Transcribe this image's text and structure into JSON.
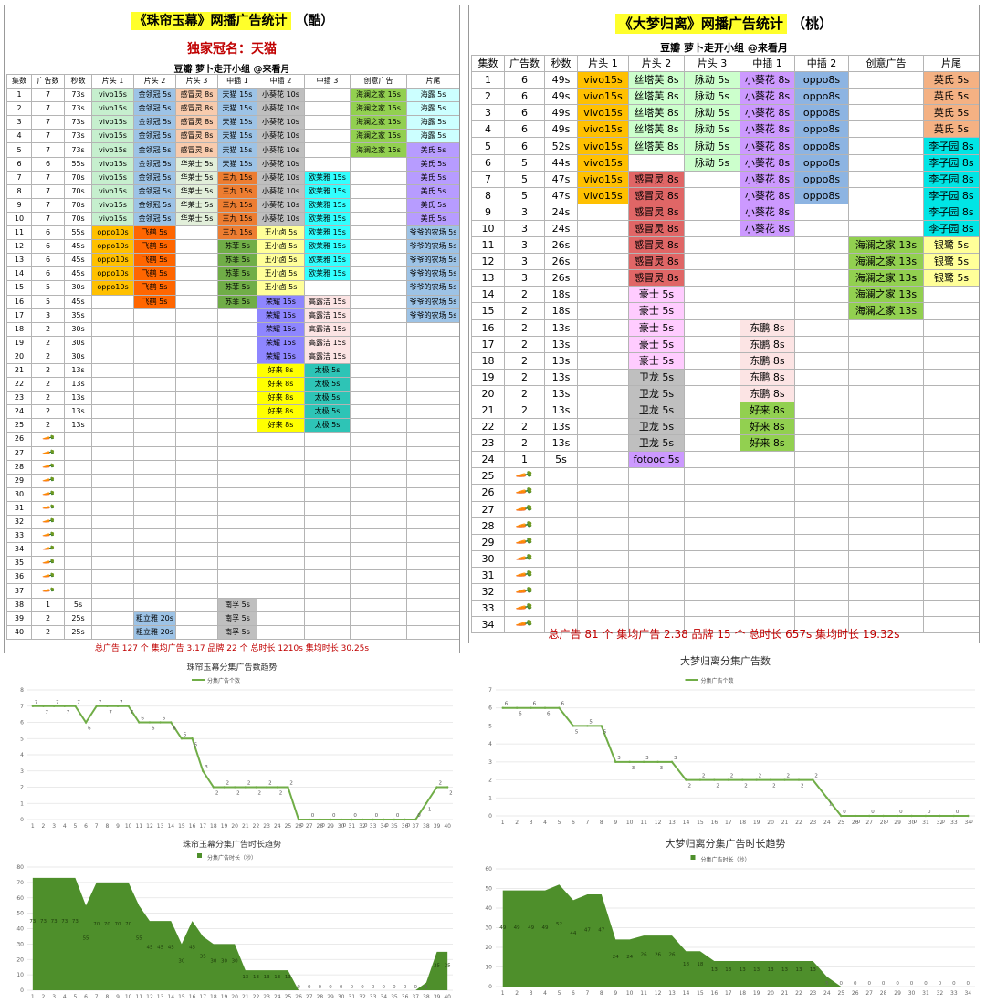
{
  "left_table": {
    "title_main": "《珠帘玉幕》网播广告统计",
    "title_suffix": "（酷）",
    "crown": "独家冠名：天猫",
    "subtitle": "豆瓣 萝卜走开小组 @来看月",
    "headers": [
      "集数",
      "广告数",
      "秒数",
      "片头 1",
      "片头 2",
      "片头 3",
      "中插 1",
      "中插 2",
      "中插 3",
      "创意广告",
      "片尾"
    ],
    "rows": [
      [
        "1",
        "7",
        "73s",
        "vivo15s",
        "金领冠 5s",
        "感冒灵 8s",
        "天猫 15s",
        "小葵花 10s",
        "",
        "海澜之家 15s",
        "海露 5s"
      ],
      [
        "2",
        "7",
        "73s",
        "vivo15s",
        "金领冠 5s",
        "感冒灵 8s",
        "天猫 15s",
        "小葵花 10s",
        "",
        "海澜之家 15s",
        "海露 5s"
      ],
      [
        "3",
        "7",
        "73s",
        "vivo15s",
        "金领冠 5s",
        "感冒灵 8s",
        "天猫 15s",
        "小葵花 10s",
        "",
        "海澜之家 15s",
        "海露 5s"
      ],
      [
        "4",
        "7",
        "73s",
        "vivo15s",
        "金领冠 5s",
        "感冒灵 8s",
        "天猫 15s",
        "小葵花 10s",
        "",
        "海澜之家 15s",
        "海露 5s"
      ],
      [
        "5",
        "7",
        "73s",
        "vivo15s",
        "金领冠 5s",
        "感冒灵 8s",
        "天猫 15s",
        "小葵花 10s",
        "",
        "海澜之家 15s",
        "美氏 5s"
      ],
      [
        "6",
        "6",
        "55s",
        "vivo15s",
        "金领冠 5s",
        "华莱士 5s",
        "天猫 15s",
        "小葵花 10s",
        "",
        "",
        "美氏 5s"
      ],
      [
        "7",
        "7",
        "70s",
        "vivo15s",
        "金领冠 5s",
        "华莱士 5s",
        "三九 15s",
        "小葵花 10s",
        "欧莱雅 15s",
        "",
        "美氏 5s"
      ],
      [
        "8",
        "7",
        "70s",
        "vivo15s",
        "金领冠 5s",
        "华莱士 5s",
        "三九 15s",
        "小葵花 10s",
        "欧莱雅 15s",
        "",
        "美氏 5s"
      ],
      [
        "9",
        "7",
        "70s",
        "vivo15s",
        "金领冠 5s",
        "华莱士 5s",
        "三九 15s",
        "小葵花 10s",
        "欧莱雅 15s",
        "",
        "美氏 5s"
      ],
      [
        "10",
        "7",
        "70s",
        "vivo15s",
        "金领冠 5s",
        "华莱士 5s",
        "三九 15s",
        "小葵花 10s",
        "欧莱雅 15s",
        "",
        "美氏 5s"
      ],
      [
        "11",
        "6",
        "55s",
        "oppo10s",
        "飞鹤 5s",
        "",
        "三九 15s",
        "王小卤 5s",
        "欧莱雅 15s",
        "",
        "爷爷的农场 5s"
      ],
      [
        "12",
        "6",
        "45s",
        "oppo10s",
        "飞鹤 5s",
        "",
        "苏菲 5s",
        "王小卤 5s",
        "欧莱雅 15s",
        "",
        "爷爷的农场 5s"
      ],
      [
        "13",
        "6",
        "45s",
        "oppo10s",
        "飞鹤 5s",
        "",
        "苏菲 5s",
        "王小卤 5s",
        "欧莱雅 15s",
        "",
        "爷爷的农场 5s"
      ],
      [
        "14",
        "6",
        "45s",
        "oppo10s",
        "飞鹤 5s",
        "",
        "苏菲 5s",
        "王小卤 5s",
        "欧莱雅 15s",
        "",
        "爷爷的农场 5s"
      ],
      [
        "15",
        "5",
        "30s",
        "oppo10s",
        "飞鹤 5s",
        "",
        "苏菲 5s",
        "王小卤 5s",
        "",
        "",
        "爷爷的农场 5s"
      ],
      [
        "16",
        "5",
        "45s",
        "",
        "飞鹤 5s",
        "",
        "苏菲 5s",
        "荣耀 15s",
        "高露洁 15s",
        "",
        "爷爷的农场 5s"
      ],
      [
        "17",
        "3",
        "35s",
        "",
        "",
        "",
        "",
        "荣耀 15s",
        "高露洁 15s",
        "",
        "爷爷的农场 5s"
      ],
      [
        "18",
        "2",
        "30s",
        "",
        "",
        "",
        "",
        "荣耀 15s",
        "高露洁 15s",
        "",
        ""
      ],
      [
        "19",
        "2",
        "30s",
        "",
        "",
        "",
        "",
        "荣耀 15s",
        "高露洁 15s",
        "",
        ""
      ],
      [
        "20",
        "2",
        "30s",
        "",
        "",
        "",
        "",
        "荣耀 15s",
        "高露洁 15s",
        "",
        ""
      ],
      [
        "21",
        "2",
        "13s",
        "",
        "",
        "",
        "",
        "好来 8s",
        "太极 5s",
        "",
        ""
      ],
      [
        "22",
        "2",
        "13s",
        "",
        "",
        "",
        "",
        "好来 8s",
        "太极 5s",
        "",
        ""
      ],
      [
        "23",
        "2",
        "13s",
        "",
        "",
        "",
        "",
        "好来 8s",
        "太极 5s",
        "",
        ""
      ],
      [
        "24",
        "2",
        "13s",
        "",
        "",
        "",
        "",
        "好来 8s",
        "太极 5s",
        "",
        ""
      ],
      [
        "25",
        "2",
        "13s",
        "",
        "",
        "",
        "",
        "好来 8s",
        "太极 5s",
        "",
        ""
      ],
      [
        "26",
        "carrot",
        "",
        "",
        "",
        "",
        "",
        "",
        "",
        "",
        ""
      ],
      [
        "27",
        "carrot",
        "",
        "",
        "",
        "",
        "",
        "",
        "",
        "",
        ""
      ],
      [
        "28",
        "carrot",
        "",
        "",
        "",
        "",
        "",
        "",
        "",
        "",
        ""
      ],
      [
        "29",
        "carrot",
        "",
        "",
        "",
        "",
        "",
        "",
        "",
        "",
        ""
      ],
      [
        "30",
        "carrot",
        "",
        "",
        "",
        "",
        "",
        "",
        "",
        "",
        ""
      ],
      [
        "31",
        "carrot",
        "",
        "",
        "",
        "",
        "",
        "",
        "",
        "",
        ""
      ],
      [
        "32",
        "carrot",
        "",
        "",
        "",
        "",
        "",
        "",
        "",
        "",
        ""
      ],
      [
        "33",
        "carrot",
        "",
        "",
        "",
        "",
        "",
        "",
        "",
        "",
        ""
      ],
      [
        "34",
        "carrot",
        "",
        "",
        "",
        "",
        "",
        "",
        "",
        "",
        ""
      ],
      [
        "35",
        "carrot",
        "",
        "",
        "",
        "",
        "",
        "",
        "",
        "",
        ""
      ],
      [
        "36",
        "carrot",
        "",
        "",
        "",
        "",
        "",
        "",
        "",
        "",
        ""
      ],
      [
        "37",
        "carrot",
        "",
        "",
        "",
        "",
        "",
        "",
        "",
        "",
        ""
      ],
      [
        "38",
        "1",
        "5s",
        "",
        "",
        "",
        "南孚 5s",
        "",
        "",
        "",
        ""
      ],
      [
        "39",
        "2",
        "25s",
        "",
        "粗立雅 20s",
        "",
        "南孚 5s",
        "",
        "",
        "",
        ""
      ],
      [
        "40",
        "2",
        "25s",
        "",
        "粗立雅 20s",
        "",
        "南孚 5s",
        "",
        "",
        "",
        ""
      ]
    ],
    "footer": "总广告 127 个   集均广告 3.17   品牌 22 个   总时长 1210s   集均时长 30.25s"
  },
  "right_table": {
    "title_main": "《大梦归离》网播广告统计",
    "title_suffix": "（桃）",
    "subtitle": "豆瓣 萝卜走开小组 @来看月",
    "headers": [
      "集数",
      "广告数",
      "秒数",
      "片头 1",
      "片头 2",
      "片头 3",
      "中插 1",
      "中插 2",
      "创意广告",
      "片尾"
    ],
    "rows": [
      [
        "1",
        "6",
        "49s",
        "vivo15s",
        "丝塔芙 8s",
        "脉动 5s",
        "小葵花 8s",
        "oppo8s",
        "",
        "英氏 5s"
      ],
      [
        "2",
        "6",
        "49s",
        "vivo15s",
        "丝塔芙 8s",
        "脉动 5s",
        "小葵花 8s",
        "oppo8s",
        "",
        "英氏 5s"
      ],
      [
        "3",
        "6",
        "49s",
        "vivo15s",
        "丝塔芙 8s",
        "脉动 5s",
        "小葵花 8s",
        "oppo8s",
        "",
        "英氏 5s"
      ],
      [
        "4",
        "6",
        "49s",
        "vivo15s",
        "丝塔芙 8s",
        "脉动 5s",
        "小葵花 8s",
        "oppo8s",
        "",
        "英氏 5s"
      ],
      [
        "5",
        "6",
        "52s",
        "vivo15s",
        "丝塔芙 8s",
        "脉动 5s",
        "小葵花 8s",
        "oppo8s",
        "",
        "李子园 8s"
      ],
      [
        "6",
        "5",
        "44s",
        "vivo15s",
        "",
        "脉动 5s",
        "小葵花 8s",
        "oppo8s",
        "",
        "李子园 8s"
      ],
      [
        "7",
        "5",
        "47s",
        "vivo15s",
        "感冒灵 8s",
        "",
        "小葵花 8s",
        "oppo8s",
        "",
        "李子园 8s"
      ],
      [
        "8",
        "5",
        "47s",
        "vivo15s",
        "感冒灵 8s",
        "",
        "小葵花 8s",
        "oppo8s",
        "",
        "李子园 8s"
      ],
      [
        "9",
        "3",
        "24s",
        "",
        "感冒灵 8s",
        "",
        "小葵花 8s",
        "",
        "",
        "李子园 8s"
      ],
      [
        "10",
        "3",
        "24s",
        "",
        "感冒灵 8s",
        "",
        "小葵花 8s",
        "",
        "",
        "李子园 8s"
      ],
      [
        "11",
        "3",
        "26s",
        "",
        "感冒灵 8s",
        "",
        "",
        "",
        "海澜之家 13s",
        "银鹭 5s"
      ],
      [
        "12",
        "3",
        "26s",
        "",
        "感冒灵 8s",
        "",
        "",
        "",
        "海澜之家 13s",
        "银鹭 5s"
      ],
      [
        "13",
        "3",
        "26s",
        "",
        "感冒灵 8s",
        "",
        "",
        "",
        "海澜之家 13s",
        "银鹭 5s"
      ],
      [
        "14",
        "2",
        "18s",
        "",
        "豪士 5s",
        "",
        "",
        "",
        "海澜之家 13s",
        ""
      ],
      [
        "15",
        "2",
        "18s",
        "",
        "豪士 5s",
        "",
        "",
        "",
        "海澜之家 13s",
        ""
      ],
      [
        "16",
        "2",
        "13s",
        "",
        "豪士 5s",
        "",
        "东鹏 8s",
        "",
        "",
        ""
      ],
      [
        "17",
        "2",
        "13s",
        "",
        "豪士 5s",
        "",
        "东鹏 8s",
        "",
        "",
        ""
      ],
      [
        "18",
        "2",
        "13s",
        "",
        "豪士 5s",
        "",
        "东鹏 8s",
        "",
        "",
        ""
      ],
      [
        "19",
        "2",
        "13s",
        "",
        "卫龙 5s",
        "",
        "东鹏 8s",
        "",
        "",
        ""
      ],
      [
        "20",
        "2",
        "13s",
        "",
        "卫龙 5s",
        "",
        "东鹏 8s",
        "",
        "",
        ""
      ],
      [
        "21",
        "2",
        "13s",
        "",
        "卫龙 5s",
        "",
        "好来 8s",
        "",
        "",
        ""
      ],
      [
        "22",
        "2",
        "13s",
        "",
        "卫龙 5s",
        "",
        "好来 8s",
        "",
        "",
        ""
      ],
      [
        "23",
        "2",
        "13s",
        "",
        "卫龙 5s",
        "",
        "好来 8s",
        "",
        "",
        ""
      ],
      [
        "24",
        "1",
        "5s",
        "",
        "fotooc 5s",
        "",
        "",
        "",
        "",
        ""
      ],
      [
        "25",
        "carrot",
        "",
        "",
        "",
        "",
        "",
        "",
        "",
        ""
      ],
      [
        "26",
        "carrot",
        "",
        "",
        "",
        "",
        "",
        "",
        "",
        ""
      ],
      [
        "27",
        "carrot",
        "",
        "",
        "",
        "",
        "",
        "",
        "",
        ""
      ],
      [
        "28",
        "carrot",
        "",
        "",
        "",
        "",
        "",
        "",
        "",
        ""
      ],
      [
        "29",
        "carrot",
        "",
        "",
        "",
        "",
        "",
        "",
        "",
        ""
      ],
      [
        "30",
        "carrot",
        "",
        "",
        "",
        "",
        "",
        "",
        "",
        ""
      ],
      [
        "31",
        "carrot",
        "",
        "",
        "",
        "",
        "",
        "",
        "",
        ""
      ],
      [
        "32",
        "carrot",
        "",
        "",
        "",
        "",
        "",
        "",
        "",
        ""
      ],
      [
        "33",
        "carrot",
        "",
        "",
        "",
        "",
        "",
        "",
        "",
        ""
      ],
      [
        "34",
        "carrot",
        "",
        "",
        "",
        "",
        "",
        "",
        "",
        ""
      ]
    ],
    "footer": "总广告 81 个   集均广告 2.38   品牌 15 个   总时长 657s   集均时长 19.32s"
  },
  "brand_colors": {
    "vivo15s": "#c6efce",
    "oppo10s": "#ffc000",
    "金领冠 5s": "#9dc3e6",
    "飞鹤 5s": "#ff6600",
    "粗立雅 20s": "#9dc3e6",
    "感冒灵 8s": "#f8cbad",
    "华莱士 5s": "#e2efda",
    "天猫 15s": "#9dc3e6",
    "三九 15s": "#ed7d31",
    "苏菲 5s": "#70ad47",
    "南孚 5s": "#bfbfbf",
    "小葵花 10s": "#bfbfbf",
    "王小卤 5s": "#ffff99",
    "荣耀 15s": "#8e86ff",
    "好来 8s": "#ffff00",
    "欧莱雅 15s": "#33ffff",
    "高露洁 15s": "#fce4e4",
    "太极 5s": "#2ec4b6",
    "海澜之家 15s": "#92d050",
    "海露 5s": "#ccffff",
    "美氏 5s": "#b79cff",
    "爷爷的农场 5s": "#9dc3e6",
    "vivo15s@R": "#ffc000",
    "丝塔芙 8s": "#ccffcc",
    "感冒灵 8s@R": "#e06666",
    "豪士 5s": "#ffccff",
    "卫龙 5s": "#bfbfbf",
    "fotooc 5s": "#cc99ff",
    "脉动 5s": "#ccffcc",
    "小葵花 8s": "#cc99ff",
    "东鹏 8s": "#fce4e4",
    "好来 8s@R": "#92d050",
    "oppo8s": "#8db4e2",
    "海澜之家 13s": "#92d050",
    "英氏 5s": "#f4b183",
    "李子园 8s": "#00e5e5",
    "银鹭 5s": "#ffff99"
  },
  "chart_data": [
    {
      "type": "line",
      "title": "珠帘玉幕分集广告数趋势",
      "series": [
        {
          "name": "分集广告个数",
          "color": "#70ad47",
          "values": [
            7,
            7,
            7,
            7,
            7,
            6,
            7,
            7,
            7,
            7,
            6,
            6,
            6,
            6,
            5,
            5,
            3,
            2,
            2,
            2,
            2,
            2,
            2,
            2,
            2,
            0,
            0,
            0,
            0,
            0,
            0,
            0,
            0,
            0,
            0,
            0,
            0,
            1,
            2,
            2
          ]
        }
      ],
      "x": [
        1,
        2,
        3,
        4,
        5,
        6,
        7,
        8,
        9,
        10,
        11,
        12,
        13,
        14,
        15,
        16,
        17,
        18,
        19,
        20,
        21,
        22,
        23,
        24,
        25,
        26,
        27,
        28,
        29,
        30,
        31,
        32,
        33,
        34,
        35,
        36,
        37,
        38,
        39,
        40
      ],
      "ylim": [
        0,
        8
      ],
      "yticks": [
        0,
        1,
        2,
        3,
        4,
        5,
        6,
        7,
        8
      ],
      "grid": true,
      "legend": "top"
    },
    {
      "type": "line",
      "title": "大梦归离分集广告数",
      "series": [
        {
          "name": "分集广告个数",
          "color": "#70ad47",
          "values": [
            6,
            6,
            6,
            6,
            6,
            5,
            5,
            5,
            3,
            3,
            3,
            3,
            3,
            2,
            2,
            2,
            2,
            2,
            2,
            2,
            2,
            2,
            2,
            1,
            0,
            0,
            0,
            0,
            0,
            0,
            0,
            0,
            0,
            0
          ]
        }
      ],
      "x": [
        1,
        2,
        3,
        4,
        5,
        6,
        7,
        8,
        9,
        10,
        11,
        12,
        13,
        14,
        15,
        16,
        17,
        18,
        19,
        20,
        21,
        22,
        23,
        24,
        25,
        26,
        27,
        28,
        29,
        30,
        31,
        32,
        33,
        34
      ],
      "ylim": [
        0,
        7
      ],
      "yticks": [
        0,
        1,
        2,
        3,
        4,
        5,
        6,
        7
      ],
      "grid": true,
      "legend": "top"
    },
    {
      "type": "area",
      "title": "珠帘玉幕分集广告时长趋势",
      "series": [
        {
          "name": "分集广告时长（秒）",
          "color": "#4e8f2b",
          "values": [
            73,
            73,
            73,
            73,
            73,
            55,
            70,
            70,
            70,
            70,
            55,
            45,
            45,
            45,
            30,
            45,
            35,
            30,
            30,
            30,
            13,
            13,
            13,
            13,
            13,
            0,
            0,
            0,
            0,
            0,
            0,
            0,
            0,
            0,
            0,
            0,
            0,
            5,
            25,
            25
          ]
        }
      ],
      "x": [
        1,
        2,
        3,
        4,
        5,
        6,
        7,
        8,
        9,
        10,
        11,
        12,
        13,
        14,
        15,
        16,
        17,
        18,
        19,
        20,
        21,
        22,
        23,
        24,
        25,
        26,
        27,
        28,
        29,
        30,
        31,
        32,
        33,
        34,
        35,
        36,
        37,
        38,
        39,
        40
      ],
      "ylim": [
        0,
        80
      ],
      "yticks": [
        0,
        10,
        20,
        30,
        40,
        50,
        60,
        70,
        80
      ],
      "grid": true,
      "legend": "top"
    },
    {
      "type": "area",
      "title": "大梦归离分集广告时长趋势",
      "series": [
        {
          "name": "分集广告时长（秒）",
          "color": "#4e8f2b",
          "values": [
            49,
            49,
            49,
            49,
            52,
            44,
            47,
            47,
            24,
            24,
            26,
            26,
            26,
            18,
            18,
            13,
            13,
            13,
            13,
            13,
            13,
            13,
            13,
            5,
            0,
            0,
            0,
            0,
            0,
            0,
            0,
            0,
            0,
            0
          ]
        }
      ],
      "x": [
        1,
        2,
        3,
        4,
        5,
        6,
        7,
        8,
        9,
        10,
        11,
        12,
        13,
        14,
        15,
        16,
        17,
        18,
        19,
        20,
        21,
        22,
        23,
        24,
        25,
        26,
        27,
        28,
        29,
        30,
        31,
        32,
        33,
        34
      ],
      "ylim": [
        0,
        60
      ],
      "yticks": [
        0,
        10,
        20,
        30,
        40,
        50,
        60
      ],
      "grid": true,
      "legend": "top"
    }
  ]
}
